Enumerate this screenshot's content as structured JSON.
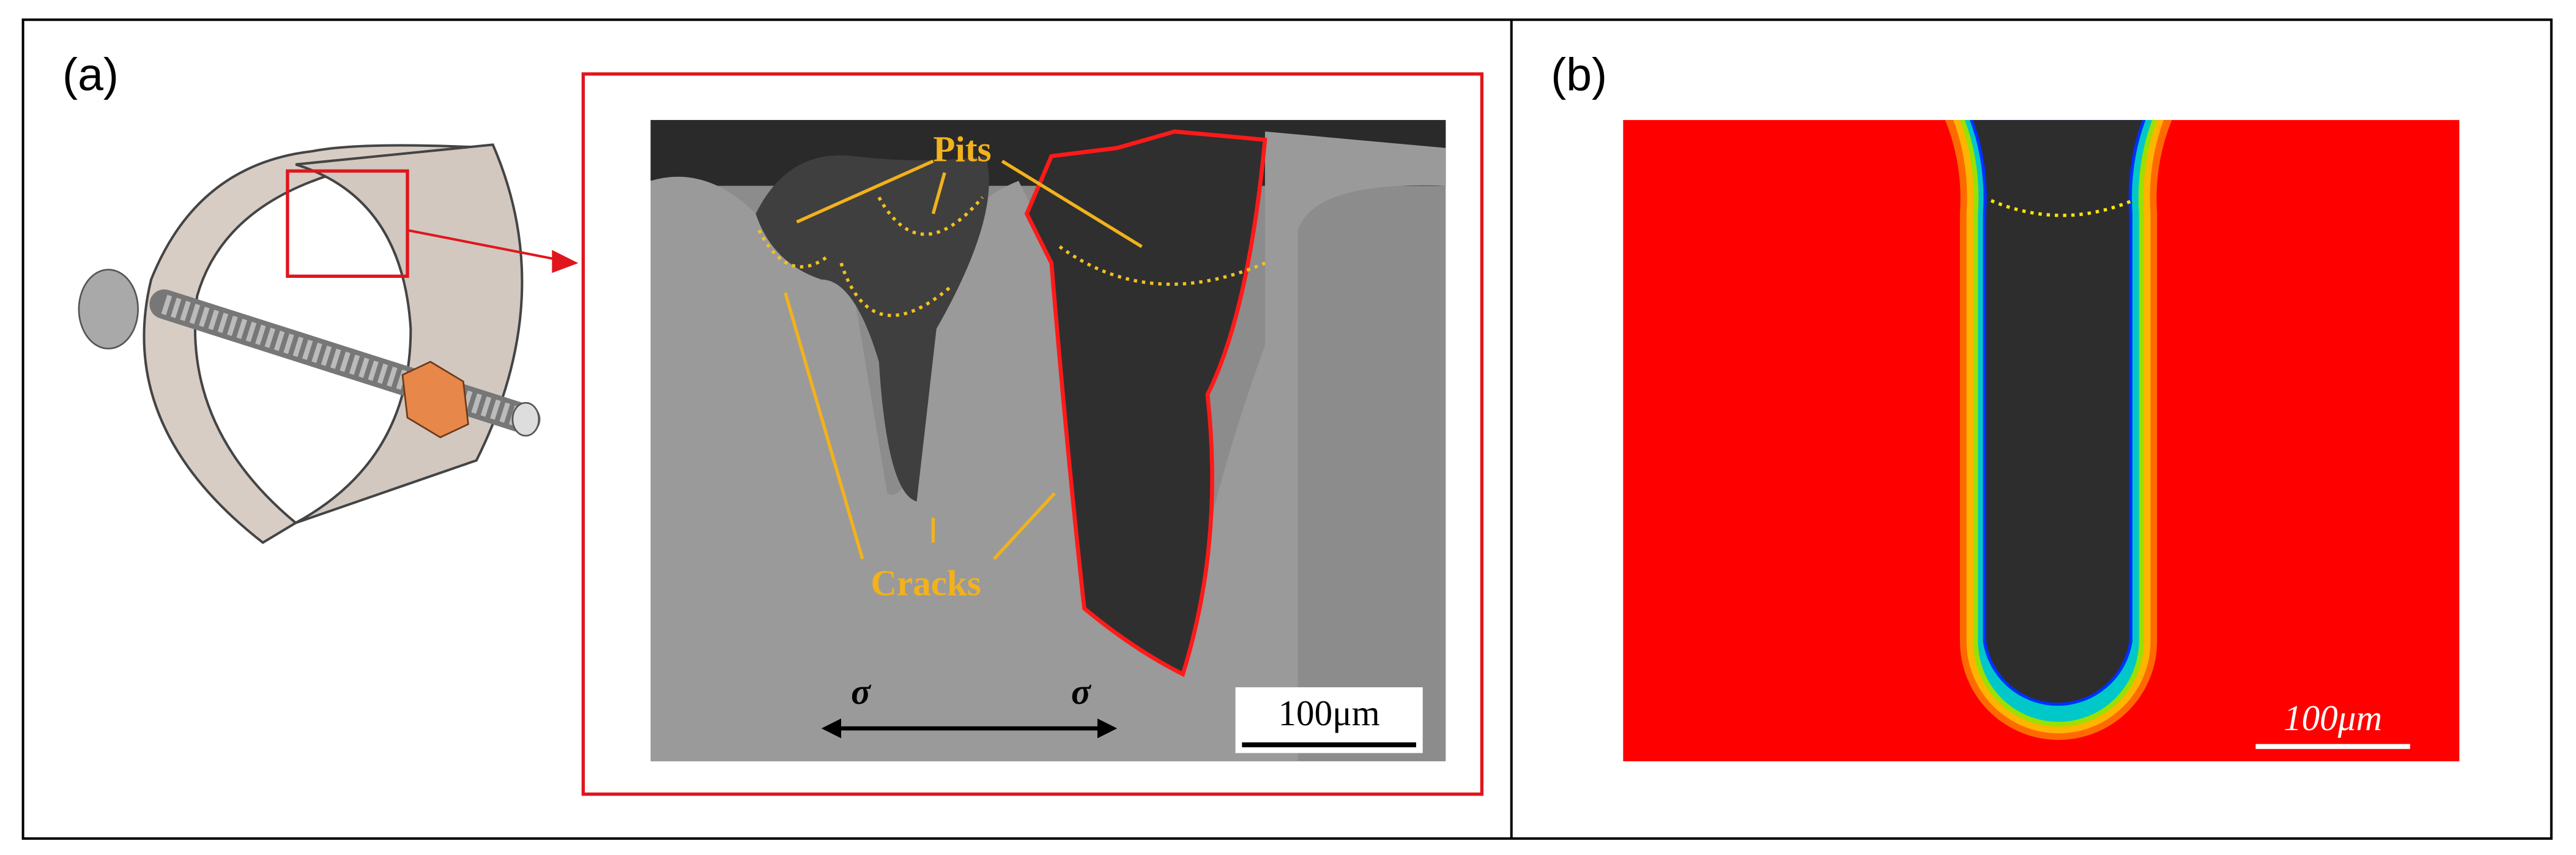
{
  "panel_a": {
    "label": "(a)",
    "pits": "Pits",
    "cracks": "Cracks",
    "sigma_left": "σ",
    "sigma_right": "σ",
    "scale_bar": "100μm"
  },
  "panel_b": {
    "label": "(b)",
    "scale_bar": "100μm"
  }
}
